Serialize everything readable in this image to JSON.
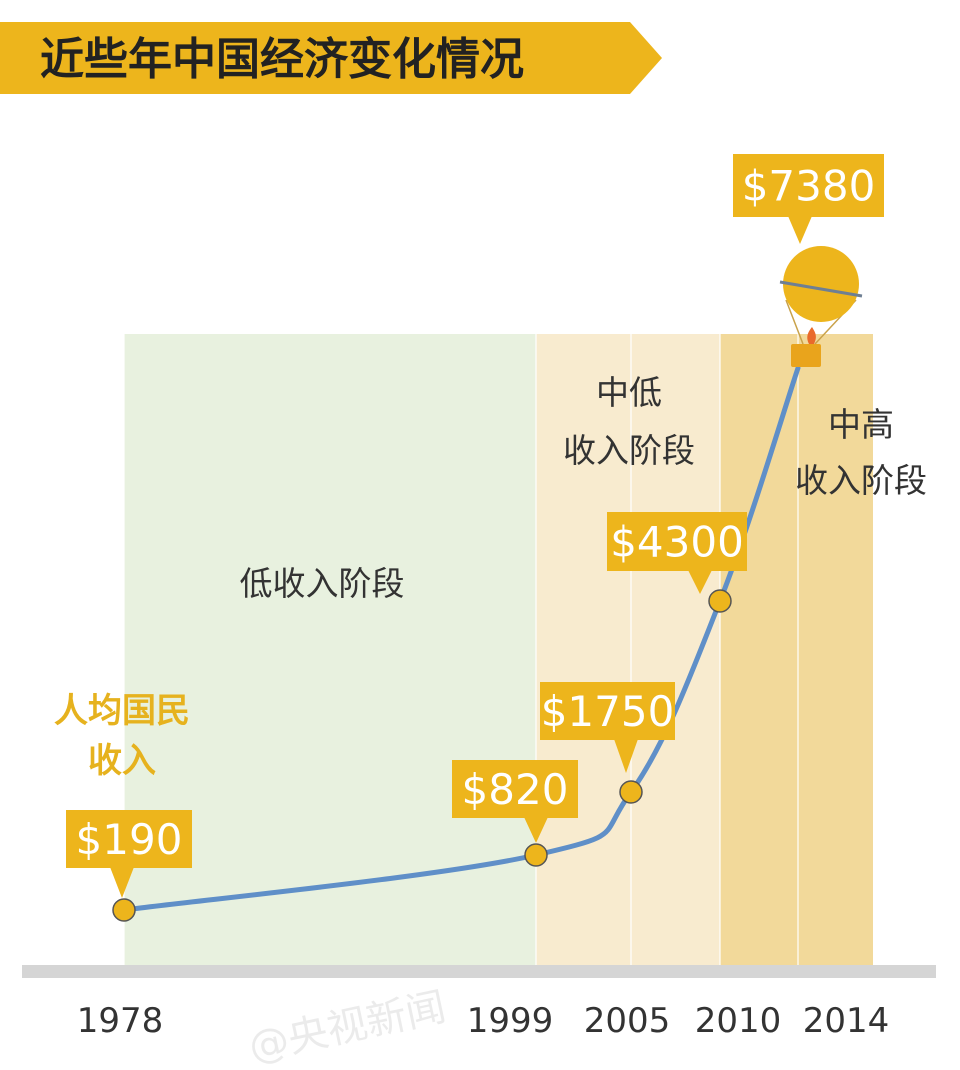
{
  "banner": {
    "title": "近些年中国经济变化情况"
  },
  "colors": {
    "banner": "#EDB51C",
    "bubble": "#EDB51C",
    "line": "#5F8FC8",
    "dot": "#EDB51C",
    "phase_low": "#E8F1DF",
    "phase_lower_middle": "#F8EBCF",
    "phase_upper_middle": "#F2D99A",
    "axis": "#D5D5D5",
    "ylabel": "#E6B21E"
  },
  "chart_data": {
    "type": "line",
    "title": "近些年中国经济变化情况",
    "ylabel_lines": [
      "人均国民",
      "收入"
    ],
    "x_ticks": [
      "1978",
      "1999",
      "2005",
      "2010",
      "2014"
    ],
    "x": [
      1978,
      1999,
      2005,
      2010,
      2014
    ],
    "values": [
      190,
      820,
      1750,
      4300,
      7380
    ],
    "data_labels": [
      "$190",
      "$820",
      "$1750",
      "$4300",
      "$7380"
    ],
    "grid": false,
    "legend": "none",
    "phases": [
      {
        "label_lines": [
          "低收入阶段"
        ],
        "start": 1978,
        "end": 1999
      },
      {
        "label_lines": [
          "中低",
          "收入阶段"
        ],
        "start": 1999,
        "end": 2010
      },
      {
        "label_lines": [
          "中高",
          "收入阶段"
        ],
        "start": 2010,
        "end": 2014
      }
    ]
  },
  "watermark": "@央视新闻"
}
